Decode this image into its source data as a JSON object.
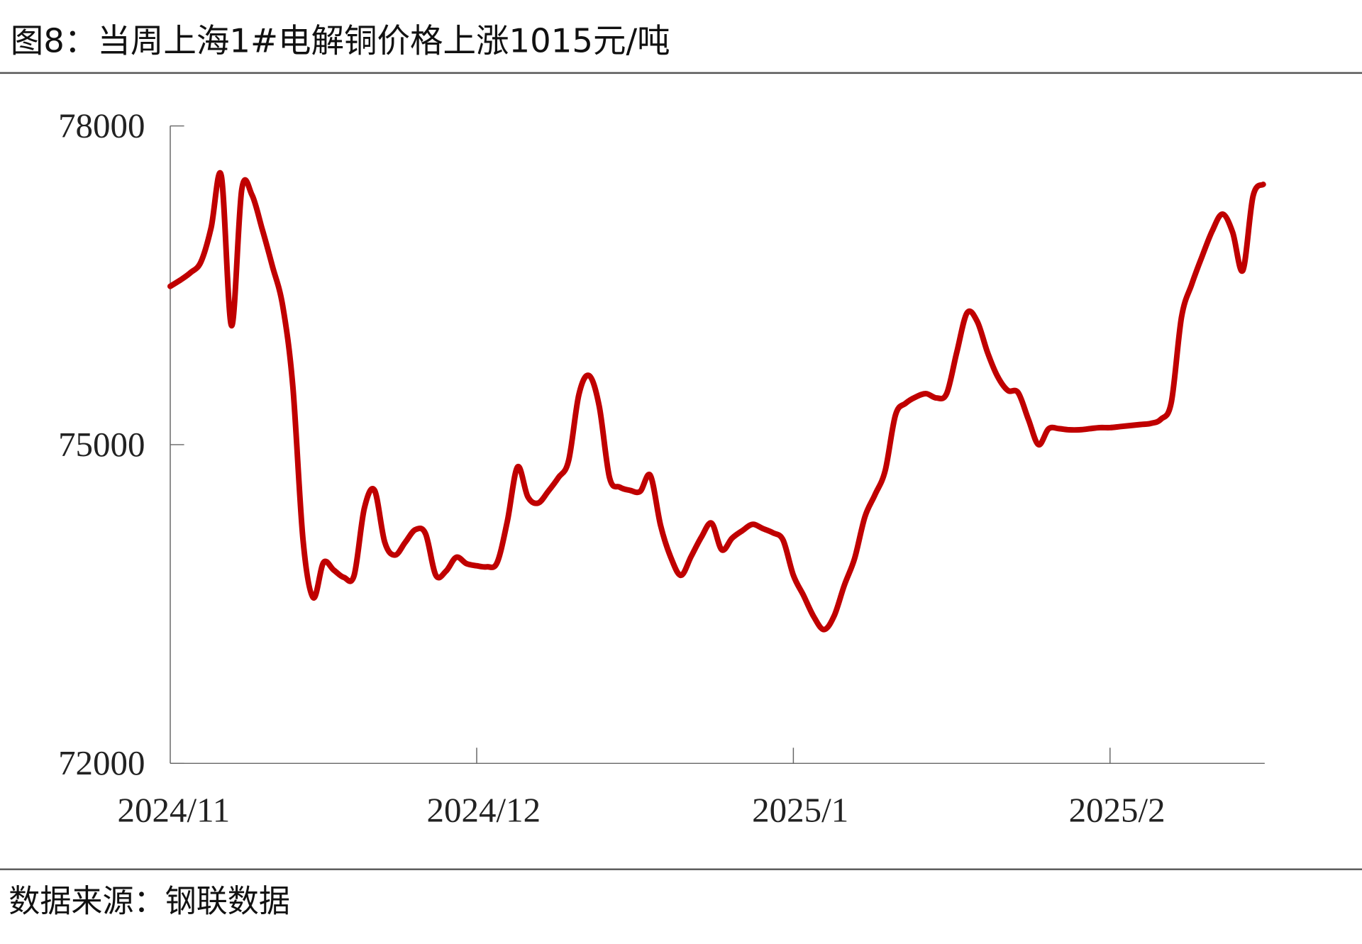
{
  "figure": {
    "title": "图8：当周上海1#电解铜价格上涨1015元/吨",
    "source": "数据来源：钢联数据"
  },
  "chart_data": {
    "type": "line",
    "title": "图8：当周上海1#电解铜价格上涨1015元/吨",
    "xlabel": "",
    "ylabel": "",
    "ylim": [
      72000,
      78000
    ],
    "yticks": [
      72000,
      75000,
      78000
    ],
    "ytick_labels": [
      "72000",
      "75000",
      "78000"
    ],
    "xticks": [
      "2024-11-01",
      "2024-12-01",
      "2025-01-01",
      "2025-02-01"
    ],
    "xtick_labels": [
      "2024/11",
      "2024/12",
      "2025/1",
      "2025/2"
    ],
    "xlim": [
      "2024-11-01",
      "2025-02-18"
    ],
    "grid": false,
    "legend": "none",
    "series": [
      {
        "color": "#C00000",
        "x": [
          "2024-11-01",
          "2024-11-02",
          "2024-11-03",
          "2024-11-04",
          "2024-11-05",
          "2024-11-06",
          "2024-11-07",
          "2024-11-08",
          "2024-11-09",
          "2024-11-10",
          "2024-11-11",
          "2024-11-12",
          "2024-11-13",
          "2024-11-14",
          "2024-11-15",
          "2024-11-16",
          "2024-11-17",
          "2024-11-18",
          "2024-11-19",
          "2024-11-20",
          "2024-11-21",
          "2024-11-22",
          "2024-11-23",
          "2024-11-24",
          "2024-11-25",
          "2024-11-26",
          "2024-11-27",
          "2024-11-28",
          "2024-11-29",
          "2024-11-30",
          "2024-12-01",
          "2024-12-02",
          "2024-12-03",
          "2024-12-04",
          "2024-12-05",
          "2024-12-06",
          "2024-12-07",
          "2024-12-08",
          "2024-12-09",
          "2024-12-10",
          "2024-12-11",
          "2024-12-12",
          "2024-12-13",
          "2024-12-14",
          "2024-12-15",
          "2024-12-16",
          "2024-12-17",
          "2024-12-18",
          "2024-12-19",
          "2024-12-20",
          "2024-12-21",
          "2024-12-22",
          "2024-12-23",
          "2024-12-24",
          "2024-12-25",
          "2024-12-26",
          "2024-12-27",
          "2024-12-28",
          "2024-12-29",
          "2024-12-30",
          "2024-12-31",
          "2025-01-01",
          "2025-01-02",
          "2025-01-03",
          "2025-01-04",
          "2025-01-05",
          "2025-01-06",
          "2025-01-07",
          "2025-01-08",
          "2025-01-09",
          "2025-01-10",
          "2025-01-11",
          "2025-01-12",
          "2025-01-13",
          "2025-01-14",
          "2025-01-15",
          "2025-01-16",
          "2025-01-17",
          "2025-01-18",
          "2025-01-19",
          "2025-01-20",
          "2025-01-21",
          "2025-01-22",
          "2025-01-23",
          "2025-01-24",
          "2025-01-25",
          "2025-01-26",
          "2025-01-27",
          "2025-01-28",
          "2025-01-29",
          "2025-01-30",
          "2025-01-31",
          "2025-02-01",
          "2025-02-02",
          "2025-02-03",
          "2025-02-04",
          "2025-02-05",
          "2025-02-06",
          "2025-02-07",
          "2025-02-08",
          "2025-02-09",
          "2025-02-10",
          "2025-02-11",
          "2025-02-12",
          "2025-02-13",
          "2025-02-14",
          "2025-02-15",
          "2025-02-16"
        ],
        "values": [
          76490,
          76550,
          76620,
          76720,
          77040,
          77530,
          76120,
          77400,
          77350,
          77030,
          76680,
          76310,
          75550,
          74100,
          73560,
          73890,
          73820,
          73750,
          73770,
          74400,
          74570,
          74080,
          73960,
          74080,
          74200,
          74160,
          73770,
          73810,
          73940,
          73880,
          73860,
          73850,
          73890,
          74280,
          74790,
          74510,
          74450,
          74560,
          74690,
          74850,
          75470,
          75650,
          75360,
          74690,
          74600,
          74570,
          74560,
          74710,
          74240,
          73940,
          73770,
          73950,
          74130,
          74260,
          74010,
          74120,
          74190,
          74250,
          74210,
          74170,
          74100,
          73770,
          73580,
          73380,
          73260,
          73390,
          73680,
          73930,
          74320,
          74530,
          74760,
          75280,
          75390,
          75450,
          75480,
          75440,
          75480,
          75870,
          76240,
          76160,
          75870,
          75640,
          75510,
          75490,
          75240,
          75000,
          75150,
          75150,
          75140,
          75140,
          75150,
          75160,
          75160,
          75170,
          75180,
          75190,
          75200,
          75240,
          75400,
          76200,
          76510,
          76770,
          77010,
          77170,
          77000,
          76640,
          77340,
          77450
        ]
      }
    ]
  }
}
